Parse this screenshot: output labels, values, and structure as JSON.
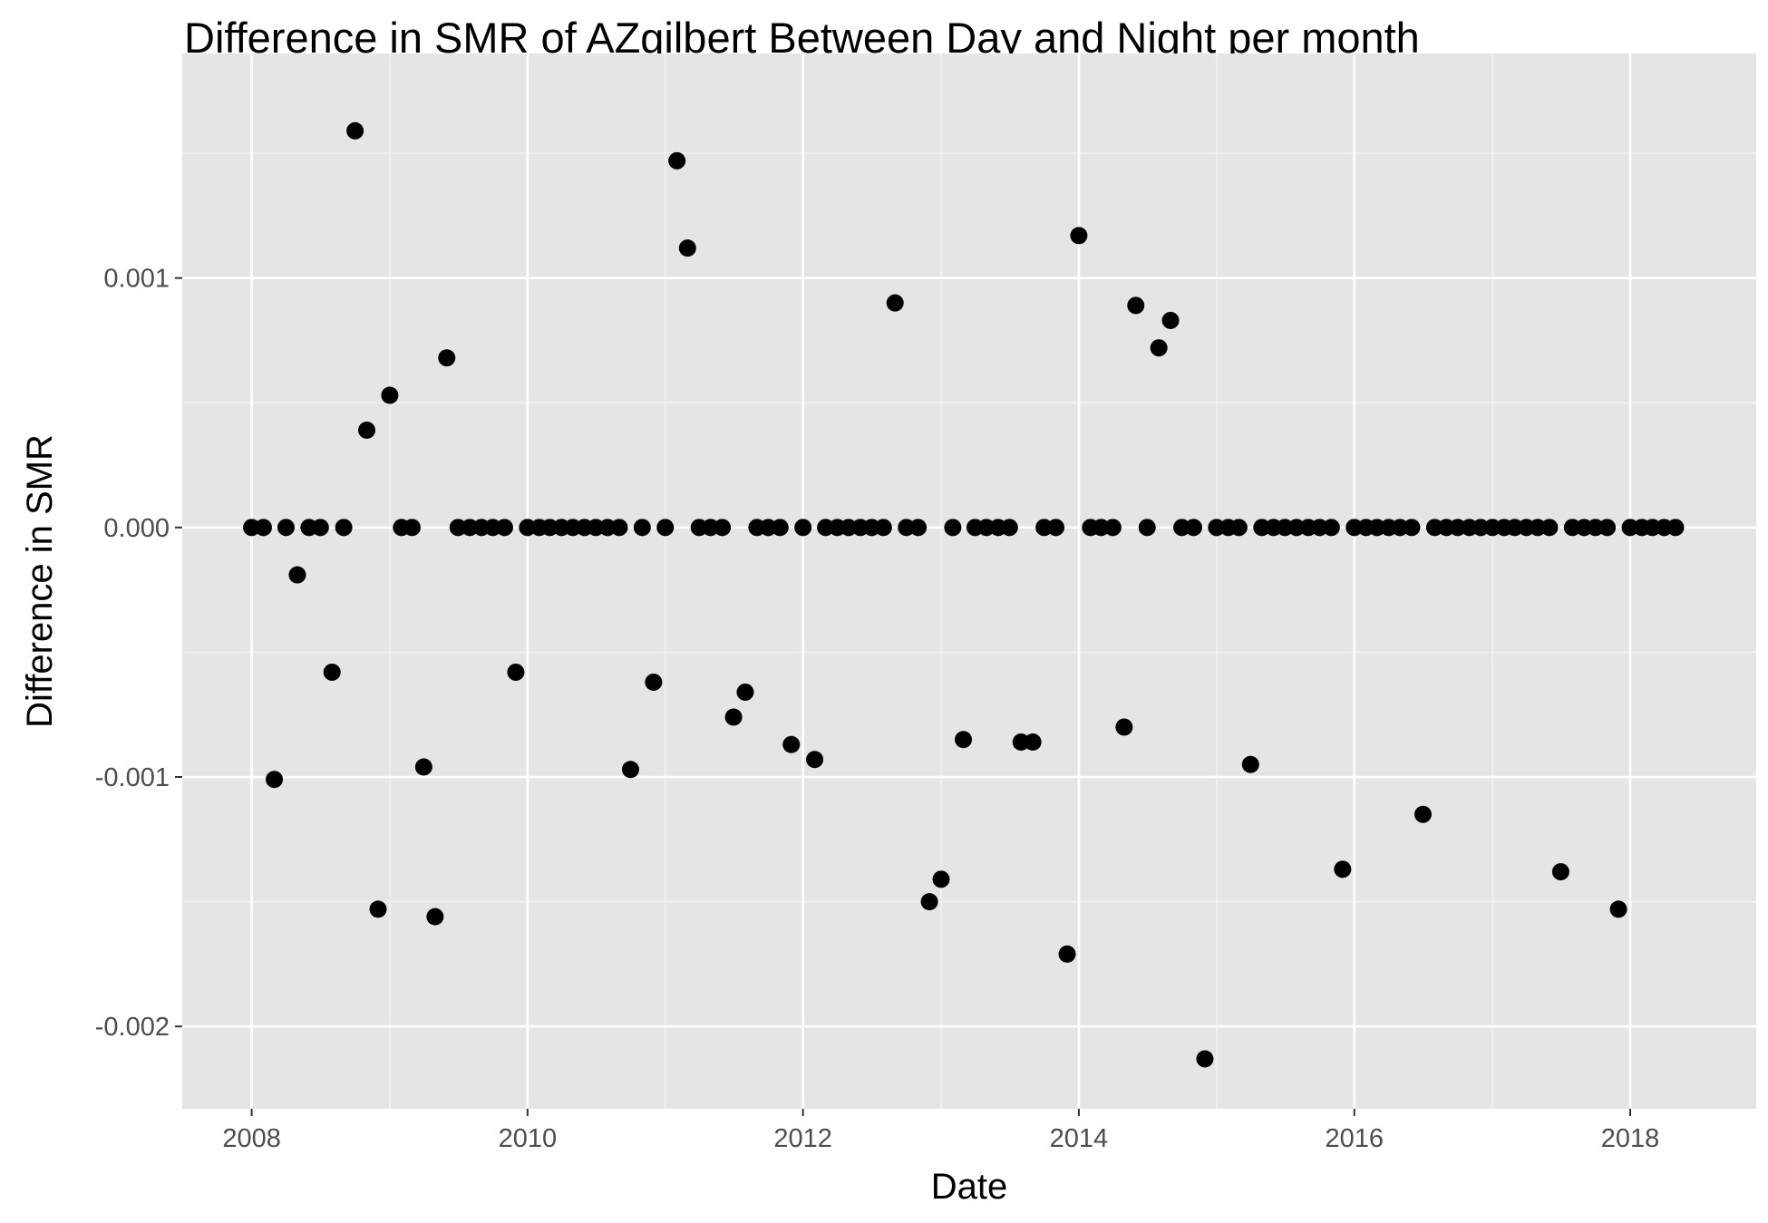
{
  "chart_data": {
    "type": "scatter",
    "title": "Difference in SMR of AZgilbert Between Day and Night per month",
    "xlabel": "Date",
    "ylabel": "Difference in SMR",
    "xlim": [
      "2007-07-01",
      "2018-12-01"
    ],
    "ylim": [
      -0.00233,
      0.0019
    ],
    "x_ticks": [
      "2008",
      "2010",
      "2012",
      "2014",
      "2016",
      "2018"
    ],
    "y_ticks": [
      "0.001",
      "0.000",
      "-0.001",
      "-0.002"
    ],
    "y_tick_values": [
      0.001,
      0.0,
      -0.001,
      -0.002
    ],
    "grid": true,
    "legend": "none",
    "point_color": "#000000",
    "panel_color": "#e5e5e5",
    "points": [
      {
        "x": "2008-01-01",
        "y": 0
      },
      {
        "x": "2008-02-01",
        "y": 0
      },
      {
        "x": "2008-03-01",
        "y": -0.00101
      },
      {
        "x": "2008-04-01",
        "y": 0
      },
      {
        "x": "2008-05-01",
        "y": -0.00019
      },
      {
        "x": "2008-06-01",
        "y": 0
      },
      {
        "x": "2008-07-01",
        "y": 0
      },
      {
        "x": "2008-08-01",
        "y": -0.00058
      },
      {
        "x": "2008-09-01",
        "y": 0
      },
      {
        "x": "2008-10-01",
        "y": 0.00159
      },
      {
        "x": "2008-11-01",
        "y": 0.00039
      },
      {
        "x": "2008-12-01",
        "y": -0.00153
      },
      {
        "x": "2009-01-01",
        "y": 0.00053
      },
      {
        "x": "2009-02-01",
        "y": 0
      },
      {
        "x": "2009-03-01",
        "y": 0
      },
      {
        "x": "2009-04-01",
        "y": -0.00096
      },
      {
        "x": "2009-05-01",
        "y": -0.00156
      },
      {
        "x": "2009-06-01",
        "y": 0.00068
      },
      {
        "x": "2009-07-01",
        "y": 0
      },
      {
        "x": "2009-08-01",
        "y": 0
      },
      {
        "x": "2009-09-01",
        "y": 0
      },
      {
        "x": "2009-10-01",
        "y": 0
      },
      {
        "x": "2009-11-01",
        "y": 0
      },
      {
        "x": "2009-12-01",
        "y": -0.00058
      },
      {
        "x": "2010-01-01",
        "y": 0
      },
      {
        "x": "2010-02-01",
        "y": 0
      },
      {
        "x": "2010-03-01",
        "y": 0
      },
      {
        "x": "2010-04-01",
        "y": 0
      },
      {
        "x": "2010-05-01",
        "y": 0
      },
      {
        "x": "2010-06-01",
        "y": 0
      },
      {
        "x": "2010-07-01",
        "y": 0
      },
      {
        "x": "2010-08-01",
        "y": 0
      },
      {
        "x": "2010-09-01",
        "y": 0
      },
      {
        "x": "2010-10-01",
        "y": -0.00097
      },
      {
        "x": "2010-11-01",
        "y": 0
      },
      {
        "x": "2010-12-01",
        "y": -0.00062
      },
      {
        "x": "2011-01-01",
        "y": 0
      },
      {
        "x": "2011-02-01",
        "y": 0.00147
      },
      {
        "x": "2011-03-01",
        "y": 0.00112
      },
      {
        "x": "2011-04-01",
        "y": 0
      },
      {
        "x": "2011-05-01",
        "y": 0
      },
      {
        "x": "2011-06-01",
        "y": 0
      },
      {
        "x": "2011-07-01",
        "y": -0.00076
      },
      {
        "x": "2011-08-01",
        "y": -0.00066
      },
      {
        "x": "2011-09-01",
        "y": 0
      },
      {
        "x": "2011-10-01",
        "y": 0
      },
      {
        "x": "2011-11-01",
        "y": 0
      },
      {
        "x": "2011-12-01",
        "y": -0.00087
      },
      {
        "x": "2012-01-01",
        "y": 0
      },
      {
        "x": "2012-02-01",
        "y": -0.00093
      },
      {
        "x": "2012-03-01",
        "y": 0
      },
      {
        "x": "2012-04-01",
        "y": 0
      },
      {
        "x": "2012-05-01",
        "y": 0
      },
      {
        "x": "2012-06-01",
        "y": 0
      },
      {
        "x": "2012-07-01",
        "y": 0
      },
      {
        "x": "2012-08-01",
        "y": 0
      },
      {
        "x": "2012-09-01",
        "y": 0.0009
      },
      {
        "x": "2012-10-01",
        "y": 0
      },
      {
        "x": "2012-11-01",
        "y": 0
      },
      {
        "x": "2012-12-01",
        "y": -0.0015
      },
      {
        "x": "2013-01-01",
        "y": -0.00141
      },
      {
        "x": "2013-02-01",
        "y": 0
      },
      {
        "x": "2013-03-01",
        "y": -0.00085
      },
      {
        "x": "2013-04-01",
        "y": 0
      },
      {
        "x": "2013-05-01",
        "y": 0
      },
      {
        "x": "2013-06-01",
        "y": 0
      },
      {
        "x": "2013-07-01",
        "y": 0
      },
      {
        "x": "2013-08-01",
        "y": -0.00086
      },
      {
        "x": "2013-09-01",
        "y": -0.00086
      },
      {
        "x": "2013-10-01",
        "y": 0
      },
      {
        "x": "2013-11-01",
        "y": 0
      },
      {
        "x": "2013-12-01",
        "y": -0.00171
      },
      {
        "x": "2014-01-01",
        "y": 0.00117
      },
      {
        "x": "2014-02-01",
        "y": 0
      },
      {
        "x": "2014-03-01",
        "y": 0
      },
      {
        "x": "2014-04-01",
        "y": 0
      },
      {
        "x": "2014-05-01",
        "y": -0.0008
      },
      {
        "x": "2014-06-01",
        "y": 0.00089
      },
      {
        "x": "2014-07-01",
        "y": 0
      },
      {
        "x": "2014-08-01",
        "y": 0.00072
      },
      {
        "x": "2014-09-01",
        "y": 0.00083
      },
      {
        "x": "2014-10-01",
        "y": 0
      },
      {
        "x": "2014-11-01",
        "y": 0
      },
      {
        "x": "2014-12-01",
        "y": -0.00213
      },
      {
        "x": "2015-01-01",
        "y": 0
      },
      {
        "x": "2015-02-01",
        "y": 0
      },
      {
        "x": "2015-03-01",
        "y": 0
      },
      {
        "x": "2015-04-01",
        "y": -0.00095
      },
      {
        "x": "2015-05-01",
        "y": 0
      },
      {
        "x": "2015-06-01",
        "y": 0
      },
      {
        "x": "2015-07-01",
        "y": 0
      },
      {
        "x": "2015-08-01",
        "y": 0
      },
      {
        "x": "2015-09-01",
        "y": 0
      },
      {
        "x": "2015-10-01",
        "y": 0
      },
      {
        "x": "2015-11-01",
        "y": 0
      },
      {
        "x": "2015-12-01",
        "y": -0.00137
      },
      {
        "x": "2016-01-01",
        "y": 0
      },
      {
        "x": "2016-02-01",
        "y": 0
      },
      {
        "x": "2016-03-01",
        "y": 0
      },
      {
        "x": "2016-04-01",
        "y": 0
      },
      {
        "x": "2016-05-01",
        "y": 0
      },
      {
        "x": "2016-06-01",
        "y": 0
      },
      {
        "x": "2016-07-01",
        "y": -0.00115
      },
      {
        "x": "2016-08-01",
        "y": 0
      },
      {
        "x": "2016-09-01",
        "y": 0
      },
      {
        "x": "2016-10-01",
        "y": 0
      },
      {
        "x": "2016-11-01",
        "y": 0
      },
      {
        "x": "2016-12-01",
        "y": 0
      },
      {
        "x": "2017-01-01",
        "y": 0
      },
      {
        "x": "2017-02-01",
        "y": 0
      },
      {
        "x": "2017-03-01",
        "y": 0
      },
      {
        "x": "2017-04-01",
        "y": 0
      },
      {
        "x": "2017-05-01",
        "y": 0
      },
      {
        "x": "2017-06-01",
        "y": 0
      },
      {
        "x": "2017-07-01",
        "y": -0.00138
      },
      {
        "x": "2017-08-01",
        "y": 0
      },
      {
        "x": "2017-09-01",
        "y": 0
      },
      {
        "x": "2017-10-01",
        "y": 0
      },
      {
        "x": "2017-11-01",
        "y": 0
      },
      {
        "x": "2017-12-01",
        "y": -0.00153
      },
      {
        "x": "2018-01-01",
        "y": 0
      },
      {
        "x": "2018-02-01",
        "y": 0
      },
      {
        "x": "2018-03-01",
        "y": 0
      },
      {
        "x": "2018-04-01",
        "y": 0
      },
      {
        "x": "2018-05-01",
        "y": 0
      }
    ]
  }
}
